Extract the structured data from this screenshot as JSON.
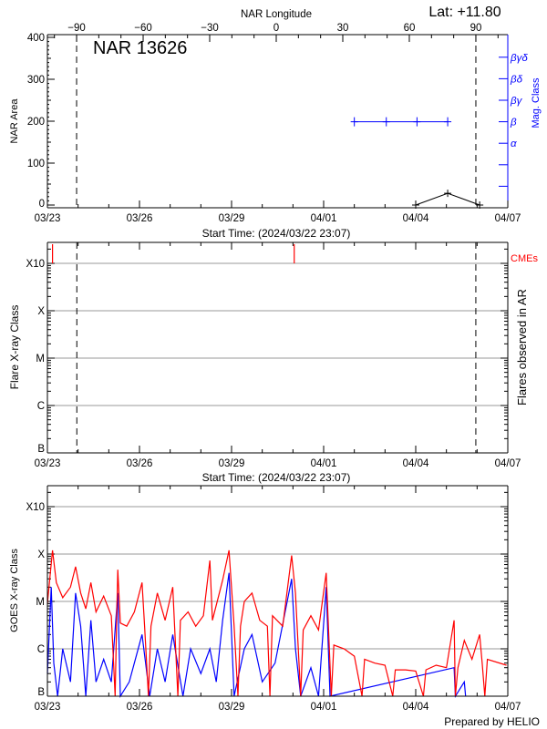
{
  "chart_data": [
    {
      "type": "line",
      "title": "NAR 13626",
      "annotation": "Lat: +11.80",
      "top_axis": {
        "label": "NAR Longitude",
        "ticks": [
          -90,
          -60,
          -30,
          0,
          30,
          60,
          90
        ],
        "tick_labels": [
          "−90",
          "−60",
          "−30",
          "0",
          "30",
          "60",
          "90"
        ]
      },
      "x_tick_labels": [
        "03/23",
        "03/26",
        "03/29",
        "04/01",
        "04/04",
        "04/07"
      ],
      "x_ticks": [
        "03/23 00:00",
        "03/26 00:00",
        "03/29 00:00",
        "04/01 00:00",
        "04/04 00:00",
        "04/07 00:00"
      ],
      "xlabel": "Start Time: (2024/03/22 23:07)",
      "ylabel": "NAR Area",
      "ylim": [
        0,
        400
      ],
      "y_ticks": [
        0,
        100,
        200,
        300,
        400
      ],
      "right_axis": {
        "label": "Mag. Class",
        "ticks": [
          "α",
          "β",
          "βγ",
          "βδ",
          "βγδ"
        ],
        "color": "#0000ff"
      },
      "limb_longitudes": [
        -90,
        90
      ],
      "area_series": [
        [
          "04/04 00:00",
          0
        ],
        [
          "04/05 01:00",
          28
        ],
        [
          "04/06 02:00",
          0
        ]
      ],
      "mag_class_series": [
        [
          "04/02 00:00",
          "β"
        ],
        [
          "04/03 01:00",
          "β"
        ],
        [
          "04/04 01:00",
          "β"
        ],
        [
          "04/05 01:00",
          "β"
        ]
      ]
    },
    {
      "type": "scatter",
      "xlabel": "Start Time: (2024/03/22 23:07)",
      "x_tick_labels": [
        "03/23",
        "03/26",
        "03/29",
        "04/01",
        "04/04",
        "04/07"
      ],
      "ylabel": "Flare X-ray Class",
      "y_scale": "log",
      "y_tick_labels": [
        "B",
        "C",
        "M",
        "X",
        "X10"
      ],
      "grid": true,
      "right_label": "Flares observed in AR",
      "cme_label": "CMEs",
      "cme_color": "#ff0000",
      "cmes": [
        "03/23 04:00",
        "03/31 01:00"
      ],
      "limb_crossings": [
        "03/23 23:00",
        "04/05 23:00"
      ],
      "flares": []
    },
    {
      "type": "line",
      "ylabel": "GOES X-ray Class",
      "y_scale": "log",
      "y_tick_labels": [
        "B",
        "C",
        "M",
        "X",
        "X10"
      ],
      "x_tick_labels": [
        "03/23",
        "03/26",
        "03/29",
        "04/01",
        "04/04",
        "04/07"
      ],
      "grid": true,
      "footer": "Prepared by HELIO",
      "series": [
        {
          "color": "#ff0000",
          "values": [
            [
              "03/23 00:00",
              9e-06
            ],
            [
              "03/23 04:00",
              0.00012
            ],
            [
              "03/23 07:00",
              2.5e-05
            ],
            [
              "03/23 12:00",
              1.2e-05
            ],
            [
              "03/23 18:00",
              2e-05
            ],
            [
              "03/23 22:00",
              5.4e-05
            ],
            [
              "03/24 02:00",
              1.5e-05
            ],
            [
              "03/24 06:00",
              7e-06
            ],
            [
              "03/24 10:00",
              2.5e-05
            ],
            [
              "03/24 14:00",
              6e-06
            ],
            [
              "03/24 20:00",
              1.3e-05
            ],
            [
              "03/25 02:00",
              5e-06
            ],
            [
              "03/25 05:00",
              1e-08
            ],
            [
              "03/25 06:00",
              3e-06
            ],
            [
              "03/25 07:00",
              4.7e-05
            ],
            [
              "03/25 09:00",
              3.5e-06
            ],
            [
              "03/25 14:00",
              3e-06
            ],
            [
              "03/25 20:00",
              6e-06
            ],
            [
              "03/26 02:00",
              2.5e-05
            ],
            [
              "03/26 04:00",
              3e-06
            ],
            [
              "03/26 07:00",
              1e-08
            ],
            [
              "03/26 09:00",
              3e-06
            ],
            [
              "03/26 14:00",
              1.5e-05
            ],
            [
              "03/26 20:00",
              4e-06
            ],
            [
              "03/27 02:00",
              2e-05
            ],
            [
              "03/27 06:00",
              1e-08
            ],
            [
              "03/27 08:00",
              4e-06
            ],
            [
              "03/27 14:00",
              6e-06
            ],
            [
              "03/27 20:00",
              3e-06
            ],
            [
              "03/28 02:00",
              5e-06
            ],
            [
              "03/28 07:00",
              7.3e-05
            ],
            [
              "03/28 09:00",
              4e-06
            ],
            [
              "03/28 17:00",
              2.8e-05
            ],
            [
              "03/28 22:00",
              0.00012
            ],
            [
              "03/29 02:00",
              3e-06
            ],
            [
              "03/29 05:00",
              1e-08
            ],
            [
              "03/29 07:00",
              3e-06
            ],
            [
              "03/29 10:00",
              1e-05
            ],
            [
              "03/29 16:00",
              1.5e-05
            ],
            [
              "03/29 22:00",
              4e-06
            ],
            [
              "03/30 04:00",
              3e-06
            ],
            [
              "03/30 06:00",
              1e-08
            ],
            [
              "03/30 08:00",
              5e-06
            ],
            [
              "03/30 16:00",
              3e-06
            ],
            [
              "03/30 23:00",
              9.3e-05
            ],
            [
              "03/31 02:00",
              1.5e-05
            ],
            [
              "03/31 06:00",
              1e-08
            ],
            [
              "03/31 08:00",
              2.5e-06
            ],
            [
              "03/31 14:00",
              5e-06
            ],
            [
              "03/31 20:00",
              2.5e-06
            ],
            [
              "04/01 02:00",
              4e-05
            ],
            [
              "04/01 04:00",
              2e-06
            ],
            [
              "04/01 06:00",
              1e-08
            ],
            [
              "04/01 08:00",
              1.2e-06
            ],
            [
              "04/01 16:00",
              1e-06
            ],
            [
              "04/02 00:00",
              7e-07
            ],
            [
              "04/02 06:00",
              1e-08
            ],
            [
              "04/02 08:00",
              6e-07
            ],
            [
              "04/02 16:00",
              5e-07
            ],
            [
              "04/03 00:00",
              4.5e-07
            ],
            [
              "04/03 06:00",
              1e-08
            ],
            [
              "04/03 08:00",
              3.6e-07
            ],
            [
              "04/03 16:00",
              3.6e-07
            ],
            [
              "04/04 00:00",
              3.4e-07
            ],
            [
              "04/04 06:00",
              1e-08
            ],
            [
              "04/04 08:00",
              3.6e-07
            ],
            [
              "04/04 16:00",
              4.5e-07
            ],
            [
              "04/05 00:00",
              4e-07
            ],
            [
              "04/05 06:00",
              4e-06
            ],
            [
              "04/05 07:00",
              1e-08
            ],
            [
              "04/05 09:00",
              4e-07
            ],
            [
              "04/05 14:00",
              1.5e-06
            ],
            [
              "04/05 20:00",
              6e-07
            ],
            [
              "04/06 02:00",
              2e-06
            ],
            [
              "04/06 04:00",
              5e-07
            ],
            [
              "04/06 06:00",
              1e-08
            ],
            [
              "04/06 08:00",
              6e-07
            ],
            [
              "04/06 23:00",
              4.5e-07
            ]
          ]
        },
        {
          "color": "#0000ff",
          "values": [
            [
              "03/23 00:00",
              3e-07
            ],
            [
              "03/23 03:00",
              2e-05
            ],
            [
              "03/23 05:00",
              5e-07
            ],
            [
              "03/23 08:00",
              1e-08
            ],
            [
              "03/23 12:00",
              1e-06
            ],
            [
              "03/23 18:00",
              2e-07
            ],
            [
              "03/23 22:00",
              1.5e-05
            ],
            [
              "03/24 02:00",
              3e-06
            ],
            [
              "03/24 06:00",
              1e-08
            ],
            [
              "03/24 10:00",
              4e-06
            ],
            [
              "03/24 14:00",
              2e-07
            ],
            [
              "03/24 20:00",
              6e-07
            ],
            [
              "03/25 02:00",
              2e-07
            ],
            [
              "03/25 07:00",
              1.5e-05
            ],
            [
              "03/25 09:00",
              1e-08
            ],
            [
              "03/25 16:00",
              2e-07
            ],
            [
              "03/26 02:00",
              2e-06
            ],
            [
              "03/26 08:00",
              1e-08
            ],
            [
              "03/26 14:00",
              1e-06
            ],
            [
              "03/26 20:00",
              2e-07
            ],
            [
              "03/27 02:00",
              2e-06
            ],
            [
              "03/27 10:00",
              1e-08
            ],
            [
              "03/27 16:00",
              1e-06
            ],
            [
              "03/28 00:00",
              3e-07
            ],
            [
              "03/28 07:00",
              1e-06
            ],
            [
              "03/28 12:00",
              2e-07
            ],
            [
              "03/28 17:00",
              4e-06
            ],
            [
              "03/28 22:00",
              4e-05
            ],
            [
              "03/29 02:00",
              1e-08
            ],
            [
              "03/29 10:00",
              1e-06
            ],
            [
              "03/29 16:00",
              2e-06
            ],
            [
              "03/30 00:00",
              2e-07
            ],
            [
              "03/30 10:00",
              5e-07
            ],
            [
              "03/30 23:00",
              3e-05
            ],
            [
              "03/31 02:00",
              1e-06
            ],
            [
              "03/31 06:00",
              1e-08
            ],
            [
              "03/31 14:00",
              4e-07
            ],
            [
              "03/31 20:00",
              1e-07
            ],
            [
              "04/01 02:00",
              2e-05
            ],
            [
              "04/01 05:00",
              1e-08
            ],
            [
              "04/05 06:00",
              4e-07
            ],
            [
              "04/05 07:00",
              1e-08
            ],
            [
              "04/05 14:00",
              2e-07
            ],
            [
              "04/05 15:00",
              1e-08
            ]
          ]
        }
      ]
    }
  ]
}
